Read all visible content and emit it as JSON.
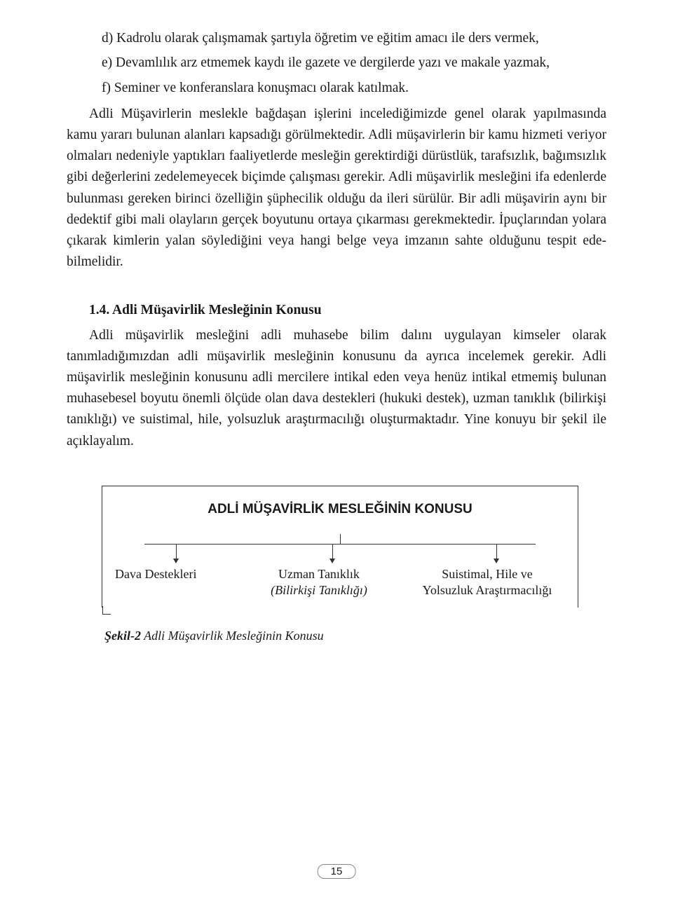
{
  "list": {
    "d": "d) Kadrolu olarak çalışmamak şartıyla öğretim ve eğitim amacı ile ders vermek,",
    "e": "e) Devamlılık arz etmemek kaydı ile gazete ve dergilerde yazı ve makale yazmak,",
    "f": "f) Seminer ve konferanslara konuşmacı olarak katılmak."
  },
  "para1": "Adli Müşavirlerin meslekle bağdaşan işlerini incelediğimizde genel olarak yapılmasında kamu yararı bulunan alanları kapsadığı görülmektedir. Adli müşavirlerin bir kamu hizmeti veriyor olmaları nedeniyle yaptıkları faaliyet­lerde mesleğin gerektirdiği dürüstlük, tarafsızlık, bağımsızlık gibi değerlerini zedelemeyecek biçimde çalışması gerekir. Adli müşavirlik mesleğini ifa edenlerde bulunması gereken birinci özelliğin şüphecilik olduğu da ileri sürülür. Bir adli müşavirin aynı bir dedektif gibi mali olayların gerçek boyu­tunu ortaya çıkarması gerekmektedir. İpuçlarından yolara çıkarak kimlerin yalan söylediğini veya hangi belge veya imzanın sahte olduğunu tespit ede­bilmelidir.",
  "heading": "1.4. Adli Müşavirlik Mesleğinin Konusu",
  "para2": "Adli müşavirlik mesleğini adli muhasebe bilim dalını uygulayan kimseler olarak tanımladığımızdan adli müşavirlik mesleğinin konusunu da ayrıca incelemek gerekir. Adli müşavirlik mesleğinin konusunu adli mercilere intikal eden veya henüz intikal etmemiş bulunan muhasebesel boyutu önemli ölçüde olan dava destekleri (hukuki destek), uzman tanıklık (bilirkişi tanıklığı) ve suistimal, hile, yolsuzluk araştırmacılığı oluşturmaktadır. Yine konuyu bir şekil ile açıklayalım.",
  "diagram": {
    "title": "ADLİ MÜŞAVİRLİK MESLEĞİNİN KONUSU",
    "branches": {
      "b1": "Dava Destekleri",
      "b2_line1": "Uzman Tanıklık",
      "b2_line2": "(Bilirkişi Tanıklığı)",
      "b3_line1": "Suistimal, Hile ve",
      "b3_line2": "Yolsuzluk Araştırmacılığı"
    },
    "arrow_positions": {
      "a1": "8%",
      "a2": "48%",
      "a3": "90%"
    }
  },
  "caption": {
    "label": "Şekil-2",
    "text": " Adli Müşavirlik Mesleğinin Konusu"
  },
  "page_number": "15",
  "colors": {
    "text": "#1a1a1a",
    "border": "#333333",
    "bg": "#ffffff"
  }
}
